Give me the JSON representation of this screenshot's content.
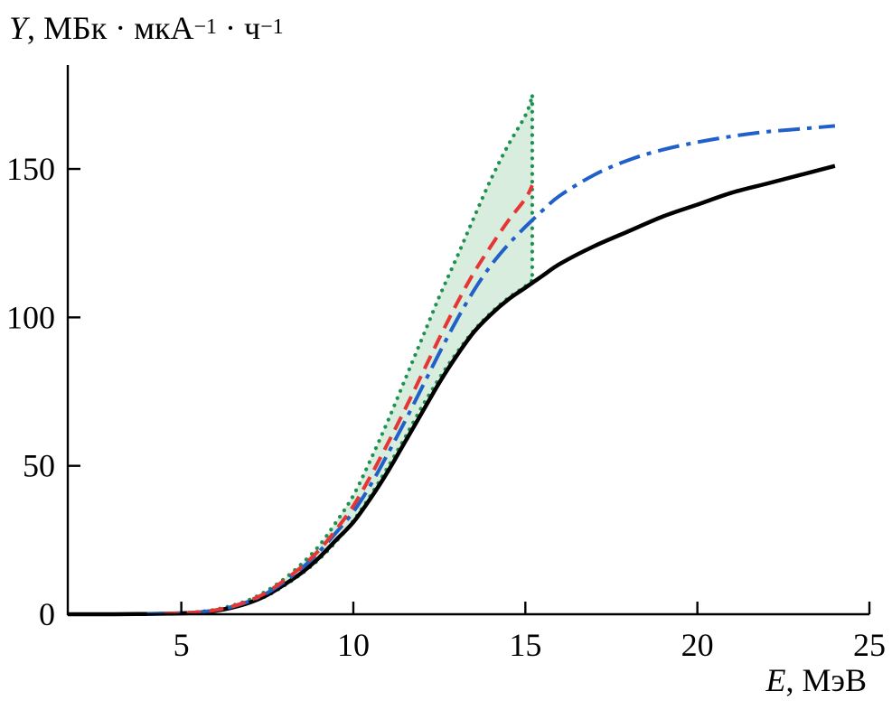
{
  "labels": {
    "y": {
      "var": "Y",
      "part1": ", МБк · мкА",
      "sup1": "−1",
      "part2": " · ч",
      "sup2": "−1"
    },
    "x": {
      "var": "E",
      "rest": ", МэВ"
    }
  },
  "chart_data": {
    "type": "line",
    "title": "",
    "xlabel": "E, МэВ",
    "ylabel": "Y, МБк · мкА⁻¹ · ч⁻¹",
    "xlim": [
      1.7,
      25
    ],
    "ylim": [
      0,
      185
    ],
    "xticks": [
      5,
      10,
      15,
      20,
      25
    ],
    "yticks": [
      0,
      50,
      100,
      150
    ],
    "grid": false,
    "legend": "none",
    "axis_color": "#000000",
    "series": [
      {
        "name": "dotted-green-upper-curve",
        "color": "#1e9050",
        "style": "dotted",
        "width": 4.2,
        "points": [
          [
            5,
            0.4
          ],
          [
            5.5,
            0.8
          ],
          [
            6,
            1.6
          ],
          [
            6.5,
            3
          ],
          [
            7,
            5
          ],
          [
            7.5,
            8
          ],
          [
            8,
            12
          ],
          [
            8.5,
            17
          ],
          [
            9,
            23
          ],
          [
            9.5,
            31
          ],
          [
            10,
            40
          ],
          [
            10.5,
            52
          ],
          [
            11,
            65
          ],
          [
            11.5,
            79
          ],
          [
            12,
            93
          ],
          [
            12.5,
            107
          ],
          [
            13,
            120
          ],
          [
            13.5,
            133.5
          ],
          [
            14,
            146.5
          ],
          [
            14.5,
            158
          ],
          [
            15,
            168
          ],
          [
            15.2,
            174.5
          ]
        ]
      },
      {
        "name": "dotted-green-lower-curve",
        "color": "#1e9050",
        "style": "dotted",
        "width": 4.2,
        "points": [
          [
            5,
            0.3
          ],
          [
            5.5,
            0.6
          ],
          [
            6,
            1.2
          ],
          [
            6.5,
            2.3
          ],
          [
            7,
            4
          ],
          [
            7.5,
            6.3
          ],
          [
            8,
            9.7
          ],
          [
            8.5,
            13.7
          ],
          [
            9,
            18.5
          ],
          [
            9.5,
            24.5
          ],
          [
            10,
            31.5
          ],
          [
            10.5,
            40
          ],
          [
            11,
            49.5
          ],
          [
            11.5,
            59.5
          ],
          [
            12,
            70
          ],
          [
            12.5,
            79.5
          ],
          [
            13,
            88
          ],
          [
            13.5,
            95.5
          ],
          [
            14,
            101.5
          ],
          [
            14.5,
            106.5
          ],
          [
            15,
            110.5
          ],
          [
            15.2,
            112.5
          ]
        ]
      },
      {
        "name": "solid-black-curve",
        "color": "#000000",
        "style": "solid",
        "width": 4.5,
        "points": [
          [
            1.7,
            0
          ],
          [
            3,
            0
          ],
          [
            4,
            0.1
          ],
          [
            5,
            0.3
          ],
          [
            5.5,
            0.6
          ],
          [
            6,
            1.2
          ],
          [
            6.5,
            2.3
          ],
          [
            7,
            4
          ],
          [
            7.5,
            6.5
          ],
          [
            8,
            10
          ],
          [
            8.5,
            14
          ],
          [
            9,
            19
          ],
          [
            9.5,
            25
          ],
          [
            10,
            31
          ],
          [
            10.5,
            39
          ],
          [
            11,
            48
          ],
          [
            11.5,
            58
          ],
          [
            12,
            68
          ],
          [
            12.5,
            78
          ],
          [
            13,
            87
          ],
          [
            13.5,
            95
          ],
          [
            14,
            101
          ],
          [
            14.5,
            106
          ],
          [
            15,
            110
          ],
          [
            15.5,
            114
          ],
          [
            16,
            118
          ],
          [
            17,
            124
          ],
          [
            18,
            129
          ],
          [
            19,
            134
          ],
          [
            20,
            138
          ],
          [
            21,
            142
          ],
          [
            22,
            145
          ],
          [
            23,
            148
          ],
          [
            24,
            151
          ]
        ]
      },
      {
        "name": "dash-dot-blue-curve",
        "color": "#2060c8",
        "style": "dashdot",
        "width": 4,
        "points": [
          [
            4,
            0.1
          ],
          [
            5,
            0.35
          ],
          [
            5.5,
            0.7
          ],
          [
            6,
            1.4
          ],
          [
            6.5,
            2.6
          ],
          [
            7,
            4.5
          ],
          [
            7.5,
            7.2
          ],
          [
            8,
            11
          ],
          [
            8.5,
            15.5
          ],
          [
            9,
            21
          ],
          [
            9.5,
            27.5
          ],
          [
            10,
            34.5
          ],
          [
            10.5,
            43.5
          ],
          [
            11,
            54
          ],
          [
            11.5,
            65
          ],
          [
            12,
            76.5
          ],
          [
            12.5,
            88
          ],
          [
            13,
            99
          ],
          [
            13.5,
            109
          ],
          [
            14,
            117.5
          ],
          [
            14.5,
            124.5
          ],
          [
            15,
            130.5
          ],
          [
            15.5,
            136
          ],
          [
            16,
            141
          ],
          [
            17,
            148
          ],
          [
            18,
            153
          ],
          [
            19,
            156.5
          ],
          [
            20,
            159
          ],
          [
            21,
            161
          ],
          [
            22,
            162.5
          ],
          [
            23,
            163.5
          ],
          [
            24,
            164.5
          ]
        ]
      },
      {
        "name": "dashed-red-curve",
        "color": "#e53535",
        "style": "dashed",
        "width": 4,
        "points": [
          [
            4.5,
            0.2
          ],
          [
            5,
            0.35
          ],
          [
            5.5,
            0.7
          ],
          [
            6,
            1.4
          ],
          [
            6.5,
            2.7
          ],
          [
            7,
            4.7
          ],
          [
            7.5,
            7.5
          ],
          [
            8,
            11.5
          ],
          [
            8.5,
            16
          ],
          [
            9,
            21.5
          ],
          [
            9.5,
            28.5
          ],
          [
            10,
            36.5
          ],
          [
            10.5,
            46.5
          ],
          [
            11,
            57.5
          ],
          [
            11.5,
            69
          ],
          [
            12,
            81
          ],
          [
            12.5,
            93
          ],
          [
            13,
            104.5
          ],
          [
            13.5,
            115
          ],
          [
            14,
            124
          ],
          [
            14.5,
            132.5
          ],
          [
            15,
            140
          ],
          [
            15.2,
            144.5
          ]
        ]
      }
    ],
    "band": {
      "name": "uncertainty-band",
      "fill": "#cbe7d2",
      "opacity": 0.75,
      "upper": "dotted-green-upper-curve",
      "lower": "dotted-green-lower-curve",
      "edge_color": "#1e9050"
    }
  }
}
